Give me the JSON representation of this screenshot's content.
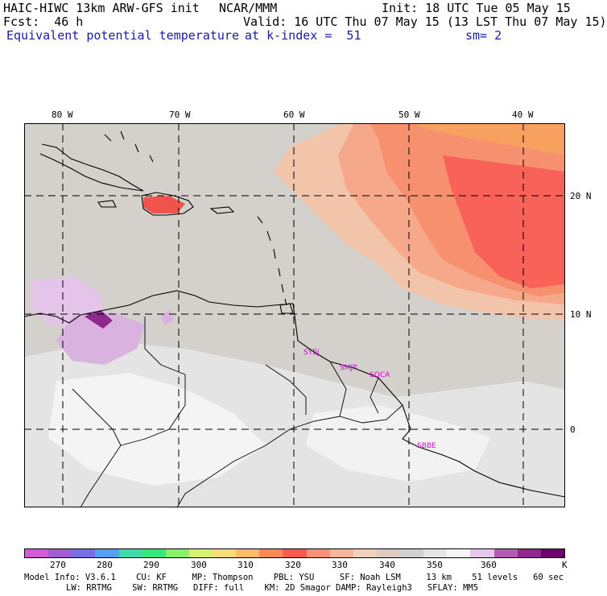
{
  "header": {
    "model": "HAIC-HIWC 13km ARW-GFS init",
    "org": "NCAR/MMM",
    "init": "Init: 18 UTC Tue 05 May 15",
    "fcst": "Fcst:  46 h",
    "valid": "Valid: 16 UTC Thu 07 May 15 (13 LST Thu 07 May 15)",
    "field": "Equivalent potential temperature",
    "level": "at k-index =  51",
    "smooth": "sm= 2"
  },
  "axes": {
    "lon_labels": [
      "80 W",
      "70 W",
      "60 W",
      "50 W",
      "40 W"
    ],
    "lat_labels": [
      "20 N",
      "10 N",
      "0"
    ]
  },
  "cities": [
    "SYEJ",
    "SMJP",
    "SOCA",
    "SBBE"
  ],
  "colorbar": {
    "colors": [
      "#d45cd4",
      "#a25cd0",
      "#7a6ee6",
      "#5a9ef2",
      "#3edcaa",
      "#34e87c",
      "#8cf06c",
      "#d8f070",
      "#f8dc7c",
      "#fcbc6a",
      "#fc8a56",
      "#f85a52",
      "#f8907a",
      "#f4b898",
      "#f0d2bc",
      "#e0cac4",
      "#d0d0d0",
      "#e6e6e6",
      "#f6f6f6",
      "#e6c6ec",
      "#b25cb2",
      "#8e2a8e",
      "#6e006e"
    ],
    "tick_labels": [
      "270",
      "280",
      "290",
      "300",
      "310",
      "320",
      "330",
      "340",
      "350",
      "360"
    ],
    "unit": "K"
  },
  "footer": {
    "line1": "Model Info: V3.6.1    CU: KF     MP: Thompson    PBL: YSU     SF: Noah LSM     13 km    51 levels   60 sec",
    "line2": "LW: RRTMG    SW: RRTMG   DIFF: full    KM: 2D Smagor DAMP: Rayleigh3   SFLAY: MM5"
  }
}
